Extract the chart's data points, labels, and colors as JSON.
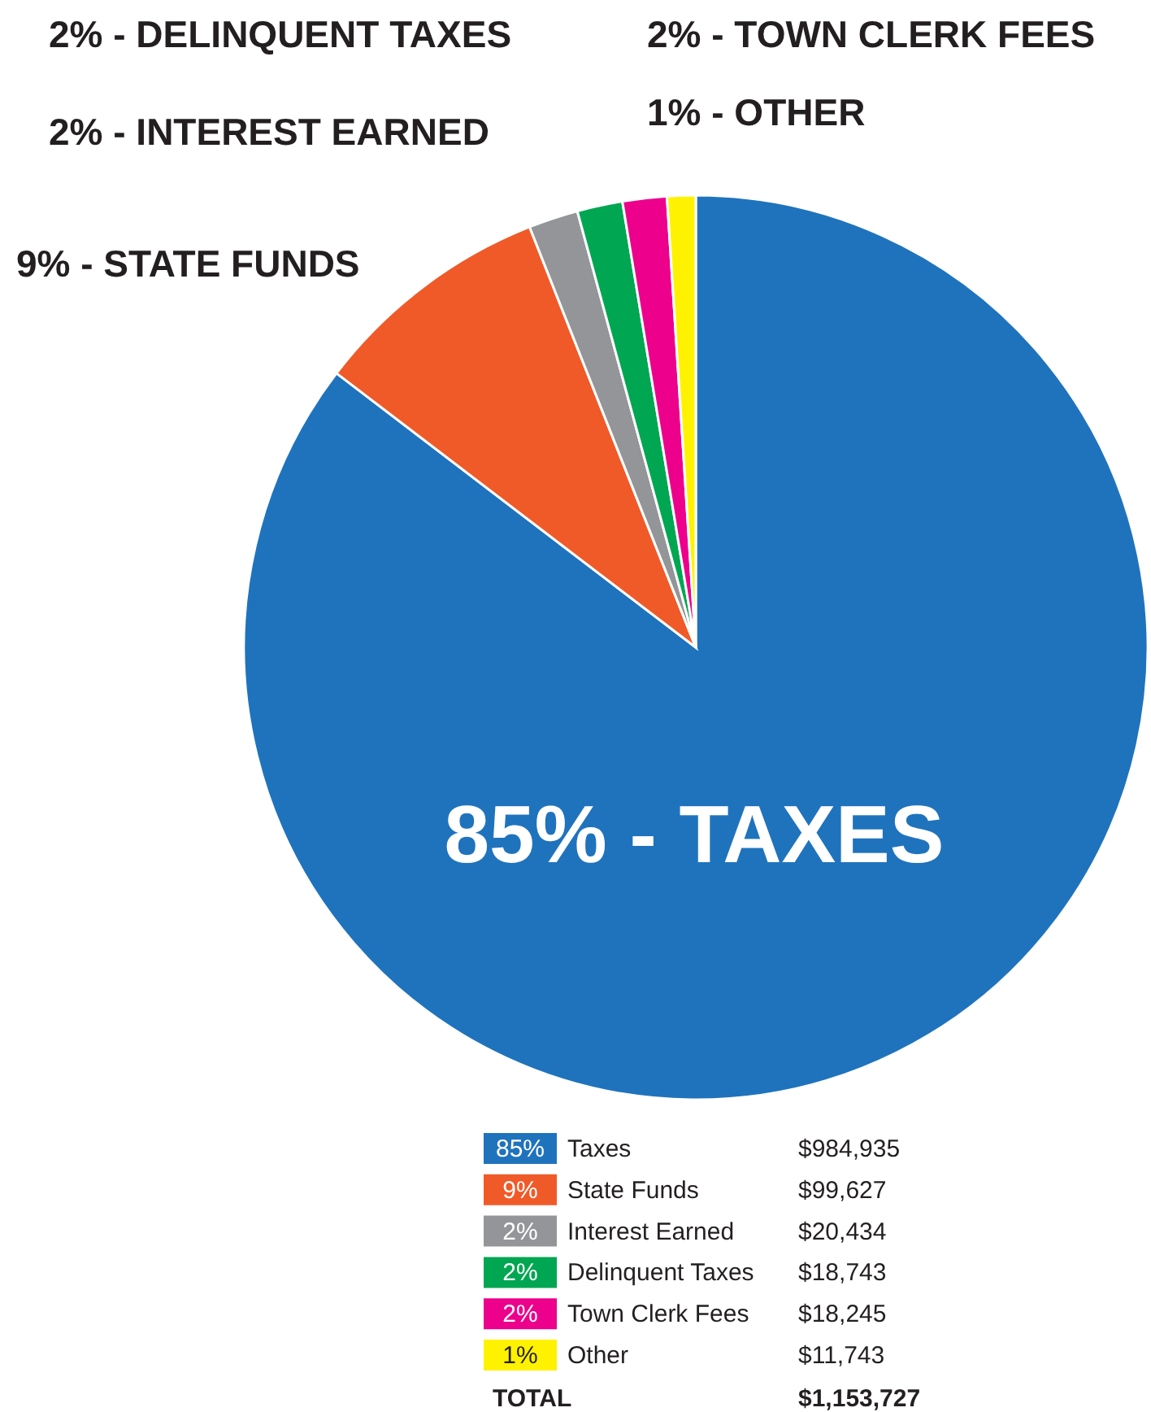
{
  "chart_data": {
    "type": "pie",
    "categories": [
      "Taxes",
      "State Funds",
      "Interest Earned",
      "Delinquent Taxes",
      "Town Clerk Fees",
      "Other"
    ],
    "values": [
      984935,
      99627,
      20434,
      18743,
      18245,
      11743
    ],
    "colors": [
      "#1f73bd",
      "#f05a28",
      "#939598",
      "#00a651",
      "#ec008c",
      "#fff200"
    ],
    "value_labels": [
      "$984,935",
      "$99,627",
      "$20,434",
      "$18,743",
      "$18,245",
      "$11,743"
    ],
    "legend": "bottom",
    "annotations": [
      {
        "text": "85% - TAXES",
        "x": "Taxes"
      },
      {
        "text": "9% - STATE FUNDS",
        "x": "State Funds"
      },
      {
        "text": "2% - INTEREST EARNED",
        "x": "Interest Earned"
      },
      {
        "text": "2% - DELINQUENT TAXES",
        "x": "Delinquent Taxes"
      },
      {
        "text": "2% - TOWN CLERK FEES",
        "x": "Town Clerk Fees"
      },
      {
        "text": "1% - OTHER",
        "x": "Other"
      },
      {
        "text": "85%",
        "x": "Taxes"
      },
      {
        "text": "9%",
        "x": "State Funds"
      },
      {
        "text": "2%",
        "x": "Interest Earned"
      },
      {
        "text": "2%",
        "x": "Delinquent Taxes"
      },
      {
        "text": "2%",
        "x": "Town Clerk Fees"
      },
      {
        "text": "1%",
        "x": "Other"
      },
      "TOTAL",
      "$1,153,727"
    ]
  }
}
